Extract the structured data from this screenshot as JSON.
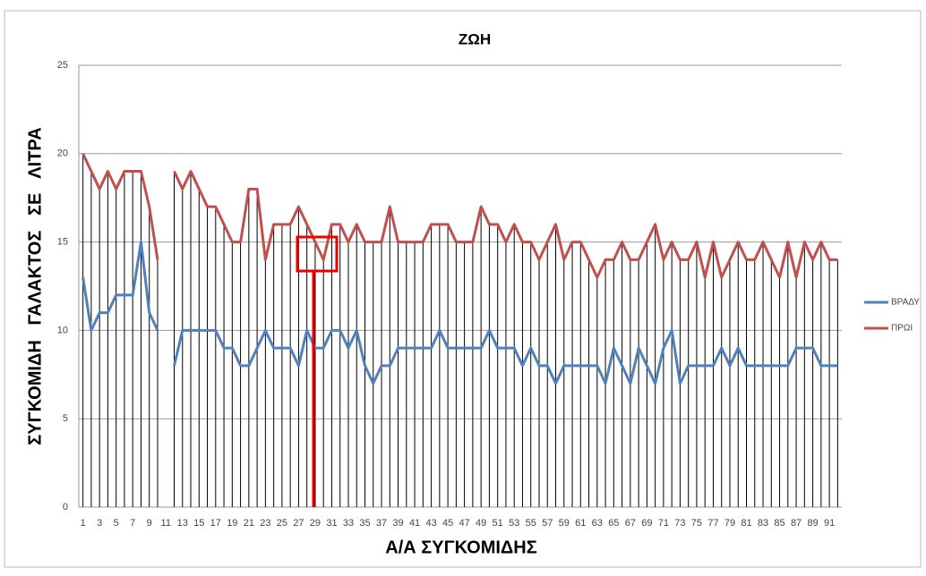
{
  "chart_data": {
    "type": "line",
    "title": "ΖΩΗ",
    "y_label": "ΣΥΓΚΟΜΙΔΗ   ΓΑΛΑΚΤΟΣ   ΣΕ   ΛΙΤΡΑ",
    "x_label": "Α/Α ΣΥΓΚΟΜΙΔΗΣ",
    "categories": [
      1,
      null,
      3,
      null,
      5,
      null,
      7,
      null,
      9,
      null,
      11,
      null,
      13,
      null,
      15,
      null,
      17,
      null,
      19,
      null,
      21,
      null,
      23,
      null,
      25,
      null,
      27,
      null,
      29,
      null,
      31,
      null,
      33,
      null,
      35,
      null,
      37,
      null,
      39,
      null,
      41,
      null,
      43,
      null,
      45,
      null,
      47,
      null,
      49,
      null,
      51,
      null,
      53,
      null,
      55,
      null,
      57,
      null,
      59,
      null,
      61,
      null,
      63,
      null,
      65,
      null,
      67,
      null,
      69,
      null,
      71,
      null,
      73,
      null,
      75,
      null,
      77,
      null,
      79,
      null,
      81,
      null,
      83,
      null,
      85,
      null,
      87,
      null,
      89,
      null,
      91,
      null
    ],
    "series": [
      {
        "name": "ΒΡΑΔΥ",
        "color": "#4f81bd",
        "values": [
          13,
          10,
          11,
          11,
          12,
          12,
          12,
          15,
          11,
          10,
          null,
          8,
          10,
          10,
          10,
          10,
          10,
          9,
          9,
          8,
          8,
          9,
          10,
          9,
          9,
          9,
          8,
          10,
          9,
          9,
          10,
          10,
          9,
          10,
          8,
          7,
          8,
          8,
          9,
          9,
          9,
          9,
          9,
          10,
          9,
          9,
          9,
          9,
          9,
          10,
          9,
          9,
          9,
          8,
          9,
          8,
          8,
          7,
          8,
          8,
          8,
          8,
          8,
          7,
          9,
          8,
          7,
          9,
          8,
          7,
          9,
          10,
          7,
          8,
          8,
          8,
          8,
          9,
          8,
          9,
          8,
          8,
          8,
          8,
          8,
          8,
          9,
          9,
          9,
          8,
          8,
          8
        ]
      },
      {
        "name": "ΠΡΩΙ",
        "color": "#c0504d",
        "values": [
          20,
          19,
          18,
          19,
          18,
          19,
          19,
          19,
          17,
          14,
          null,
          19,
          18,
          19,
          18,
          17,
          17,
          16,
          15,
          15,
          18,
          18,
          14,
          16,
          16,
          16,
          17,
          16,
          15,
          14,
          16,
          16,
          15,
          16,
          15,
          15,
          15,
          17,
          15,
          15,
          15,
          15,
          16,
          16,
          16,
          15,
          15,
          15,
          17,
          16,
          16,
          15,
          16,
          15,
          15,
          14,
          15,
          16,
          14,
          15,
          15,
          14,
          13,
          14,
          14,
          15,
          14,
          14,
          15,
          16,
          14,
          15,
          14,
          14,
          15,
          13,
          15,
          13,
          14,
          15,
          14,
          14,
          15,
          14,
          13,
          15,
          13,
          15,
          14,
          15,
          14,
          14
        ]
      }
    ],
    "ylim": [
      0,
      25
    ],
    "yticks": [
      0,
      5,
      10,
      15,
      20,
      25
    ],
    "grid": true,
    "drop_lines": true,
    "legend": "right"
  }
}
